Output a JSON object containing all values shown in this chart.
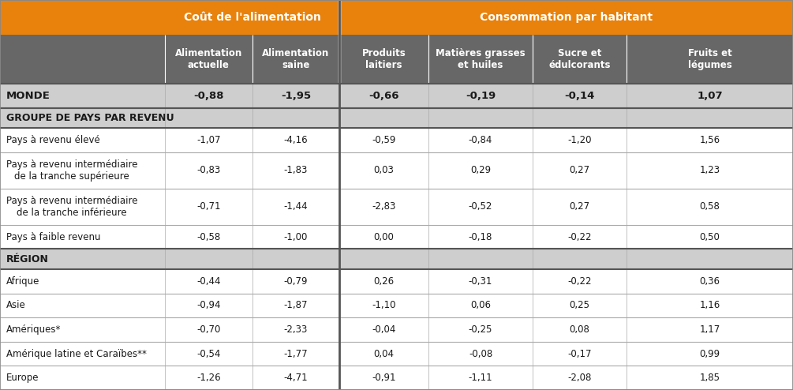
{
  "header1_text": "Coût de l'alimentation",
  "header2_text": "Consommation par habitant",
  "col_headers": [
    "Alimentation\nactuelle",
    "Alimentation\nsaine",
    "Produits\nlaitiers",
    "Matières grasses\net huiles",
    "Sucre et\nédulcorants",
    "Fruits et\nlégumes"
  ],
  "rows": [
    {
      "label": "MONDE",
      "values": [
        "-0,88",
        "-1,95",
        "-0,66",
        "-0,19",
        "-0,14",
        "1,07"
      ],
      "type": "world"
    },
    {
      "label": "GROUPE DE PAYS PAR REVENU",
      "values": [
        "",
        "",
        "",
        "",
        "",
        ""
      ],
      "type": "section"
    },
    {
      "label": "Pays à revenu élevé",
      "values": [
        "-1,07",
        "-4,16",
        "-0,59",
        "-0,84",
        "-1,20",
        "1,56"
      ],
      "type": "data"
    },
    {
      "label": "Pays à revenu intermédiaire\nde la tranche supérieure",
      "values": [
        "-0,83",
        "-1,83",
        "0,03",
        "0,29",
        "0,27",
        "1,23"
      ],
      "type": "data"
    },
    {
      "label": "Pays à revenu intermédiaire\nde la tranche inférieure",
      "values": [
        "-0,71",
        "-1,44",
        "-2,83",
        "-0,52",
        "0,27",
        "0,58"
      ],
      "type": "data"
    },
    {
      "label": "Pays à faible revenu",
      "values": [
        "-0,58",
        "-1,00",
        "0,00",
        "-0,18",
        "-0,22",
        "0,50"
      ],
      "type": "data"
    },
    {
      "label": "RÉGION",
      "values": [
        "",
        "",
        "",
        "",
        "",
        ""
      ],
      "type": "section"
    },
    {
      "label": "Afrique",
      "values": [
        "-0,44",
        "-0,79",
        "0,26",
        "-0,31",
        "-0,22",
        "0,36"
      ],
      "type": "data"
    },
    {
      "label": "Asie",
      "values": [
        "-0,94",
        "-1,87",
        "-1,10",
        "0,06",
        "0,25",
        "1,16"
      ],
      "type": "data"
    },
    {
      "label": "Amériques*",
      "values": [
        "-0,70",
        "-2,33",
        "-0,04",
        "-0,25",
        "0,08",
        "1,17"
      ],
      "type": "data"
    },
    {
      "label": "Amérique latine et Caraïbes**",
      "values": [
        "-0,54",
        "-1,77",
        "0,04",
        "-0,08",
        "-0,17",
        "0,99"
      ],
      "type": "data"
    },
    {
      "label": "Europe",
      "values": [
        "-1,26",
        "-4,71",
        "-0,91",
        "-1,11",
        "-2,08",
        "1,85"
      ],
      "type": "data"
    }
  ],
  "orange_color": "#E8820C",
  "subheader_bg": "#676767",
  "world_bg": "#CECECE",
  "section_bg": "#CECECE",
  "data_bg": "#FFFFFF",
  "divider_line_color": "#888888",
  "row_line_color": "#AAAAAA",
  "section_divider_color": "#555555",
  "text_dark": "#1A1A1A",
  "text_white": "#FFFFFF",
  "figsize": [
    10.05,
    4.94
  ],
  "dpi": 100
}
